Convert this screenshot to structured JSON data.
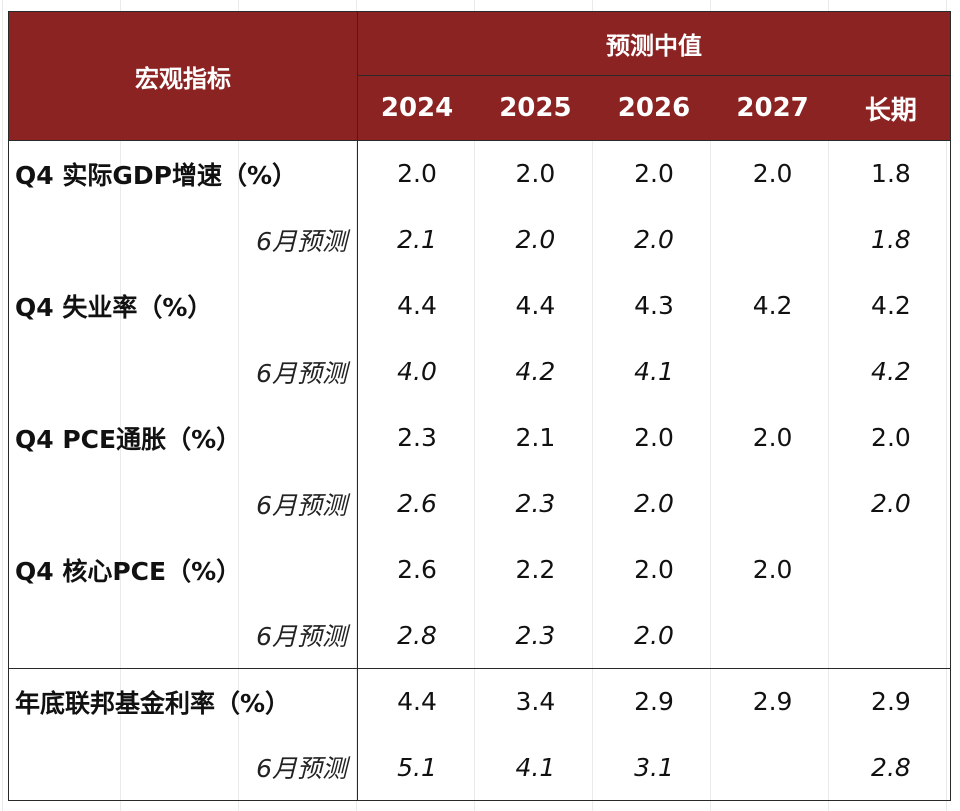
{
  "header": {
    "macro_label": "宏观指标",
    "median_label": "预测中值",
    "years": [
      "2024",
      "2025",
      "2026",
      "2027",
      "长期"
    ]
  },
  "rows": [
    {
      "label": "Q4 实际GDP增速（%）",
      "values": [
        "2.0",
        "2.0",
        "2.0",
        "2.0",
        "1.8"
      ]
    },
    {
      "label": "6月预测",
      "values": [
        "2.1",
        "2.0",
        "2.0",
        "",
        "1.8"
      ]
    },
    {
      "label": "Q4 失业率（%）",
      "values": [
        "4.4",
        "4.4",
        "4.3",
        "4.2",
        "4.2"
      ]
    },
    {
      "label": "6月预测",
      "values": [
        "4.0",
        "4.2",
        "4.1",
        "",
        "4.2"
      ]
    },
    {
      "label": "Q4 PCE通胀（%）",
      "values": [
        "2.3",
        "2.1",
        "2.0",
        "2.0",
        "2.0"
      ]
    },
    {
      "label": "6月预测",
      "values": [
        "2.6",
        "2.3",
        "2.0",
        "",
        "2.0"
      ]
    },
    {
      "label": "Q4 核心PCE（%）",
      "values": [
        "2.6",
        "2.2",
        "2.0",
        "2.0",
        ""
      ]
    },
    {
      "label": "6月预测",
      "values": [
        "2.8",
        "2.3",
        "2.0",
        "",
        ""
      ]
    },
    {
      "label": "年底联邦基金利率（%）",
      "values": [
        "4.4",
        "3.4",
        "2.9",
        "2.9",
        "2.9"
      ]
    },
    {
      "label": "6月预测",
      "values": [
        "5.1",
        "4.1",
        "3.1",
        "",
        "2.8"
      ]
    }
  ],
  "colors": {
    "header_bg": "#8b2323",
    "header_text": "#ffffff",
    "border": "#2a2a2a"
  }
}
